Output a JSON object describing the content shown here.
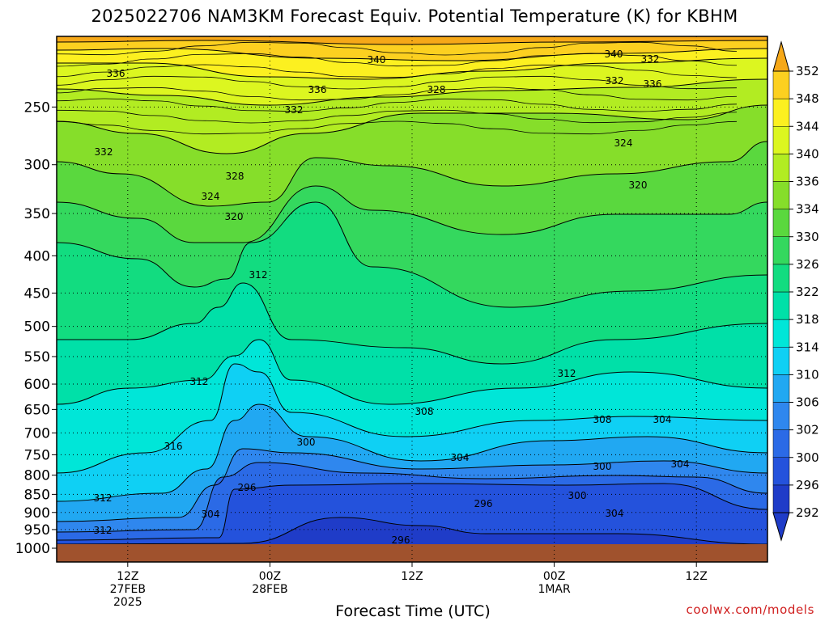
{
  "chart_data": {
    "type": "heatmap",
    "title": "2025022706 NAM3KM Forecast Equiv. Potential Temperature (K) for KBHM",
    "xlabel": "Forecast Time (UTC)",
    "ylabel": "",
    "credit": "coolwx.com/models",
    "y_axis": {
      "scale": "log",
      "inverted": true,
      "ylim": [
        1000,
        200
      ],
      "ticks": [
        250,
        300,
        350,
        400,
        450,
        500,
        550,
        600,
        650,
        700,
        750,
        800,
        850,
        900,
        950,
        1000
      ],
      "tick_labels": [
        "250",
        "300",
        "350",
        "400",
        "450",
        "500",
        "550",
        "600",
        "650",
        "700",
        "750",
        "800",
        "850",
        "900",
        "950",
        "1000"
      ]
    },
    "x_axis": {
      "unit": "forecast hour",
      "xlim": [
        0,
        60
      ],
      "ticks": [
        {
          "hour": 6,
          "label1": "12Z",
          "label2": "27FEB",
          "label3": "2025"
        },
        {
          "hour": 18,
          "label1": "00Z",
          "label2": "28FEB",
          "label3": ""
        },
        {
          "hour": 30,
          "label1": "12Z",
          "label2": "",
          "label3": ""
        },
        {
          "hour": 42,
          "label1": "00Z",
          "label2": "1MAR",
          "label3": ""
        },
        {
          "hour": 54,
          "label1": "12Z",
          "label2": "",
          "label3": ""
        }
      ]
    },
    "grid": true,
    "legend": "right",
    "colorbar": {
      "levels": [
        292,
        296,
        300,
        302,
        306,
        310,
        314,
        318,
        322,
        326,
        330,
        334,
        336,
        340,
        344,
        348,
        352
      ],
      "labels": [
        "292",
        "296",
        "300",
        "302",
        "306",
        "310",
        "314",
        "318",
        "322",
        "326",
        "330",
        "334",
        "336",
        "340",
        "344",
        "348",
        "352"
      ],
      "colors": [
        "#1f3cc8",
        "#2452dc",
        "#2b6ae6",
        "#2f87ee",
        "#21a8f2",
        "#0fd0f4",
        "#00e6d8",
        "#00e0a8",
        "#12dc80",
        "#34d85e",
        "#5ad83e",
        "#86de2a",
        "#b2ec22",
        "#dcf620",
        "#fcf020",
        "#fcd020",
        "#f6a818"
      ]
    },
    "contour_labels": [
      "340",
      "340",
      "336",
      "336",
      "332",
      "332",
      "328",
      "332",
      "336",
      "332",
      "328",
      "324",
      "324",
      "320",
      "320",
      "312",
      "312",
      "312",
      "308",
      "308",
      "304",
      "304",
      "300",
      "304",
      "300",
      "316",
      "312",
      "312",
      "296",
      "304",
      "296",
      "300",
      "304",
      "296"
    ],
    "ground_color": "#a0522d"
  }
}
